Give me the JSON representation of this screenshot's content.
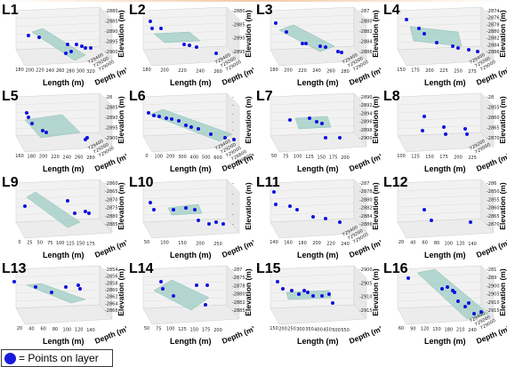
{
  "legend": {
    "label": "= Points on layer"
  },
  "axis_labels": {
    "length": "Length (m)",
    "depth": "Depth (m)",
    "elevation": "Elevation (m)"
  },
  "colors": {
    "points": "#1010e0",
    "plane": "#9ecdc4",
    "pane": "#f2f2f2",
    "grid": "#d9d9d9"
  },
  "chart_data": [
    {
      "label": "L1",
      "type": "scatter",
      "xticks": [
        "180",
        "200",
        "220",
        "240",
        "260",
        "280",
        "300",
        "320"
      ],
      "dticks": [
        "729400",
        "729200",
        "729000"
      ],
      "zticks": [
        "-2880",
        "-2885",
        "-2890",
        "-2895",
        "-2900"
      ]
    },
    {
      "label": "L2",
      "type": "scatter",
      "xticks": [
        "180",
        "200",
        "220",
        "240",
        "260"
      ],
      "dticks": [
        "729400",
        "729200",
        "729000"
      ],
      "zticks": [
        "-2880",
        "-2885",
        "-2890",
        "-2895"
      ]
    },
    {
      "label": "L3",
      "type": "scatter",
      "xticks": [
        "180",
        "200",
        "220",
        "240",
        "260",
        "280"
      ],
      "dticks": [
        "729400",
        "729200",
        "729000"
      ],
      "zticks": [
        "-287",
        "-2880",
        "-2882",
        "-2884",
        "-2886"
      ]
    },
    {
      "label": "L4",
      "type": "scatter",
      "xticks": [
        "150",
        "175",
        "200",
        "225",
        "250",
        "275"
      ],
      "dticks": [
        "729400",
        "729200",
        "729000"
      ],
      "zticks": [
        "-2874",
        "-2876",
        "-2878",
        "-2880",
        "-2882",
        "-2884",
        "-2886"
      ]
    },
    {
      "label": "L5",
      "type": "scatter",
      "xticks": [
        "160",
        "180",
        "200",
        "220",
        "240",
        "260",
        "280"
      ],
      "dticks": [
        "729400",
        "729200",
        "729000"
      ],
      "zticks": [
        "-28",
        "-2885",
        "-2890",
        "-2895",
        "-2900"
      ]
    },
    {
      "label": "L6",
      "type": "scatter",
      "xticks": [
        "0",
        "100",
        "200",
        "300",
        "400",
        "500",
        "600"
      ],
      "dticks": [
        "729400",
        "729200",
        "729000",
        "728800",
        "728600"
      ],
      "zticks": [
        "-",
        "-",
        "-",
        "-",
        "-",
        "-"
      ]
    },
    {
      "label": "L7",
      "type": "scatter",
      "xticks": [
        "50",
        "75",
        "100",
        "125",
        "150",
        "175",
        "200"
      ],
      "dticks": [],
      "zticks": [
        "-2890",
        "-2892",
        "-2894",
        "-2896",
        "-2898",
        "-2900"
      ]
    },
    {
      "label": "L8",
      "type": "scatter",
      "xticks": [
        "100",
        "125",
        "150",
        "175",
        "200",
        "225"
      ],
      "dticks": [
        "729200",
        "729000"
      ],
      "zticks": [
        "-28",
        "-2855",
        "-2860",
        "-2865",
        "-2870"
      ]
    },
    {
      "label": "L9",
      "type": "scatter",
      "xticks": [
        "0",
        "25",
        "50",
        "75",
        "100",
        "125",
        "150",
        "175"
      ],
      "dticks": [],
      "zticks": [
        "-2860",
        "-2865",
        "-2870",
        "-2875",
        "-2880",
        "-2885"
      ]
    },
    {
      "label": "L10",
      "type": "scatter",
      "xticks": [
        "50",
        "100",
        "150",
        "200",
        "250"
      ],
      "dticks": [],
      "zticks": [
        "-",
        "-",
        "-",
        "-",
        "-"
      ]
    },
    {
      "label": "L11",
      "type": "scatter",
      "xticks": [
        "140",
        "160",
        "180",
        "200",
        "220",
        "240"
      ],
      "dticks": [
        "729400",
        "729200",
        "729000"
      ],
      "zticks": [
        "-287",
        "-2878",
        "-2880",
        "-2882",
        "-2884",
        "-2886"
      ]
    },
    {
      "label": "L12",
      "type": "scatter",
      "xticks": [
        "20",
        "40",
        "60",
        "80",
        "100",
        "120",
        "140"
      ],
      "dticks": [],
      "zticks": [
        "-286",
        "-2850",
        "-2855",
        "-2860",
        "-2865",
        "-2870"
      ]
    },
    {
      "label": "L13",
      "type": "scatter",
      "xticks": [
        "20",
        "40",
        "60",
        "80",
        "100",
        "120",
        "140"
      ],
      "dticks": [],
      "zticks": [
        "-2854",
        "-2856",
        "-2858",
        "-2860",
        "-2862",
        "-2864",
        "-2866"
      ]
    },
    {
      "label": "L14",
      "type": "scatter",
      "xticks": [
        "50",
        "75",
        "100",
        "125",
        "150",
        "175",
        "200"
      ],
      "dticks": [],
      "zticks": [
        "-287",
        "-2875",
        "-2878",
        "-2880",
        "-2882",
        "-2885"
      ]
    },
    {
      "label": "L15",
      "type": "scatter",
      "xticks": [
        "150",
        "200",
        "250",
        "300",
        "350",
        "400",
        "450",
        "500",
        "550"
      ],
      "dticks": [],
      "zticks": [
        "-2900",
        "-2905",
        "-2910",
        "-2915"
      ]
    },
    {
      "label": "L16",
      "type": "scatter",
      "xticks": [
        "60",
        "90",
        "120",
        "150",
        "180",
        "210",
        "240"
      ],
      "dticks": [
        "729400",
        "729200",
        "729000"
      ],
      "zticks": [
        "-281",
        "-289",
        "-2900",
        "-2905",
        "-2910",
        "-2915"
      ]
    }
  ]
}
